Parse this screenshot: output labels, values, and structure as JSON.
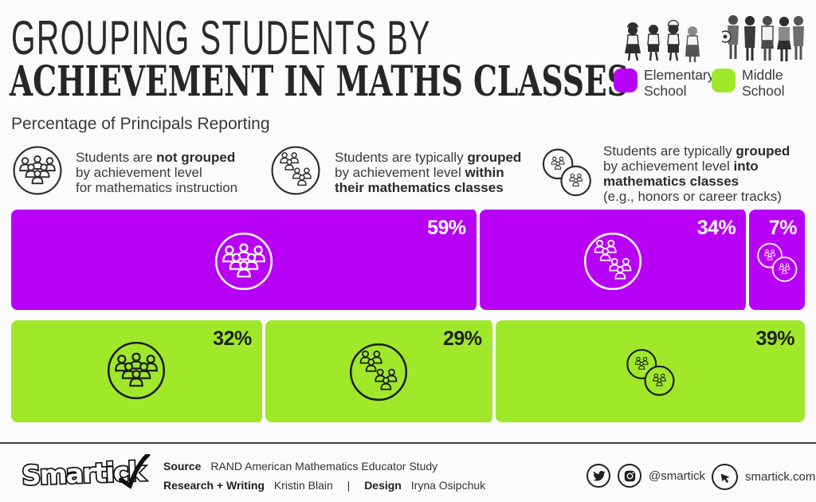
{
  "title": {
    "line1": "GROUPING STUDENTS BY",
    "line2": "ACHIEVEMENT IN MATHS CLASSES",
    "subtitle": "Percentage of Principals Reporting"
  },
  "legend": {
    "elementary": {
      "line1": "Elementary",
      "line2": "School",
      "color": "#b900f7"
    },
    "middle": {
      "line1": "Middle",
      "line2": "School",
      "color": "#a0e82a"
    }
  },
  "categories": [
    {
      "line1_normal": "Students are ",
      "line1_bold": "not grouped",
      "line2_normal": "by achievement level",
      "line2_bold": "",
      "line3_normal": "for mathematics instruction",
      "line3_bold": "",
      "line4_normal": ""
    },
    {
      "line1_normal": "Students are typically ",
      "line1_bold": "grouped",
      "line2_normal": "by achievement level ",
      "line2_bold": "within",
      "line3_normal": "",
      "line3_bold": "their mathematics classes",
      "line4_normal": ""
    },
    {
      "line1_normal": "Students are typically ",
      "line1_bold": "grouped",
      "line2_normal": "by achievement level ",
      "line2_bold": "into",
      "line3_normal": "",
      "line3_bold": "mathematics classes",
      "line4_normal": "(e.g., honors or career tracks)"
    }
  ],
  "chart_data": {
    "type": "bar",
    "orientation": "horizontal-stacked",
    "unit": "%",
    "title": "Grouping Students by Achievement in Maths Classes",
    "subtitle": "Percentage of Principals Reporting",
    "categories": [
      "Students are not grouped by achievement level for mathematics instruction",
      "Students are typically grouped by achievement level within their mathematics classes",
      "Students are typically grouped by achievement level into mathematics classes (e.g., honors or career tracks)"
    ],
    "series": [
      {
        "name": "Elementary School",
        "color": "#b900f7",
        "values": [
          59,
          34,
          7
        ],
        "labels": [
          "59%",
          "34%",
          "7%"
        ]
      },
      {
        "name": "Middle School",
        "color": "#a0e82a",
        "values": [
          32,
          29,
          39
        ],
        "labels": [
          "32%",
          "29%",
          "39%"
        ]
      }
    ],
    "xlim": [
      0,
      100
    ],
    "legend_position": "top-right",
    "grid": false
  },
  "footer": {
    "logo_text": "Smartick",
    "source_label": "Source",
    "source_text": "RAND American Mathematics Educator Study",
    "research_label": "Research + Writing",
    "research_text": "Kristin Blain",
    "separator": "|",
    "design_label": "Design",
    "design_text": "Iryna Osipchuk",
    "social_handle": "@smartick",
    "website": "smartick.com"
  }
}
